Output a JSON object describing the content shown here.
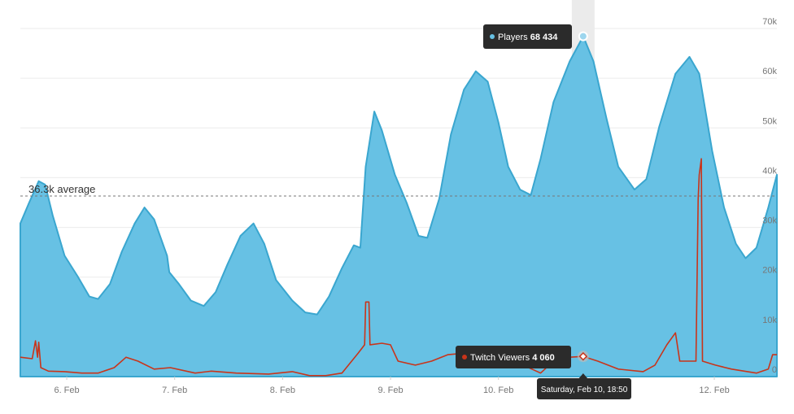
{
  "chart_data": {
    "type": "area",
    "xlim": [
      5.57,
      12.58
    ],
    "xticks": [
      {
        "value": 6,
        "label": "6. Feb"
      },
      {
        "value": 7,
        "label": "7. Feb"
      },
      {
        "value": 8,
        "label": "8. Feb"
      },
      {
        "value": 9,
        "label": "9. Feb"
      },
      {
        "value": 10,
        "label": "10. Feb"
      },
      {
        "value": 12,
        "label": "12. Feb"
      }
    ],
    "ylim": [
      0,
      70000
    ],
    "yticks": [
      0,
      {
        "value": 10000,
        "label": "10k"
      },
      {
        "value": 20000,
        "label": "20k"
      },
      {
        "value": 30000,
        "label": "30k"
      },
      {
        "value": 40000,
        "label": "40k"
      },
      {
        "value": 50000,
        "label": "50k"
      },
      {
        "value": 60000,
        "label": "60k"
      },
      {
        "value": 70000,
        "label": "70k"
      }
    ],
    "grid": true,
    "average": {
      "value": 36300,
      "label": "36.3k average"
    },
    "series": [
      {
        "name": "Players",
        "color": "#67c1e4",
        "line_color": "#3aa6cf",
        "kind": "area",
        "x": [
          5.57,
          5.65,
          5.74,
          5.8,
          5.87,
          5.98,
          6.1,
          6.21,
          6.29,
          6.4,
          6.51,
          6.63,
          6.72,
          6.81,
          6.93,
          6.95,
          7.04,
          7.15,
          7.27,
          7.38,
          7.49,
          7.61,
          7.73,
          7.83,
          7.94,
          8.09,
          8.21,
          8.32,
          8.43,
          8.55,
          8.66,
          8.72,
          8.77,
          8.85,
          8.92,
          9.04,
          9.15,
          9.26,
          9.34,
          9.45,
          9.56,
          9.68,
          9.79,
          9.9,
          10.0,
          10.09,
          10.2,
          10.3,
          10.39,
          10.51,
          10.66,
          10.785,
          10.88,
          11.0,
          11.11,
          11.26,
          11.37,
          11.49,
          11.64,
          11.77,
          11.86,
          11.98,
          12.09,
          12.2,
          12.29,
          12.39,
          12.5,
          12.58
        ],
        "values": [
          30800,
          34900,
          39300,
          38600,
          32400,
          24300,
          20200,
          16100,
          15600,
          18600,
          25100,
          30800,
          34000,
          31600,
          24300,
          21000,
          18600,
          15300,
          14200,
          17000,
          22600,
          28300,
          30800,
          26700,
          19400,
          15300,
          12900,
          12500,
          16100,
          21800,
          26400,
          25900,
          42200,
          53300,
          49500,
          40600,
          34900,
          28300,
          27900,
          35700,
          48700,
          57700,
          61400,
          59300,
          51100,
          42200,
          37600,
          36500,
          43800,
          55200,
          63400,
          68434,
          63400,
          52000,
          42200,
          37600,
          39700,
          50300,
          60900,
          64300,
          60900,
          45400,
          34000,
          26700,
          23800,
          25900,
          34000,
          40600
        ]
      },
      {
        "name": "Twitch Viewers",
        "color": "#c9341a",
        "kind": "line",
        "x": [
          5.57,
          5.68,
          5.71,
          5.73,
          5.74,
          5.76,
          5.83,
          5.98,
          6.14,
          6.29,
          6.44,
          6.55,
          6.66,
          6.81,
          6.96,
          7.19,
          7.34,
          7.57,
          7.87,
          8.09,
          8.25,
          8.4,
          8.55,
          8.7,
          8.76,
          8.77,
          8.8,
          8.81,
          8.92,
          9.0,
          9.07,
          9.23,
          9.38,
          9.53,
          9.68,
          9.83,
          9.98,
          10.13,
          10.28,
          10.39,
          10.51,
          10.66,
          10.785,
          10.92,
          11.11,
          11.34,
          11.45,
          11.56,
          11.64,
          11.68,
          11.83,
          11.85,
          11.86,
          11.88,
          11.89,
          12.01,
          12.16,
          12.39,
          12.5,
          12.54,
          12.58
        ],
        "values": [
          3900,
          3600,
          7200,
          3900,
          6900,
          1800,
          1100,
          1000,
          700,
          700,
          1800,
          3900,
          3100,
          1500,
          1800,
          700,
          1100,
          700,
          500,
          1000,
          200,
          200,
          700,
          4700,
          6400,
          15000,
          15000,
          6400,
          6700,
          6400,
          3100,
          2300,
          3100,
          4400,
          4700,
          3900,
          3100,
          3600,
          1800,
          700,
          3100,
          3900,
          4060,
          3100,
          1500,
          1000,
          2300,
          6400,
          8800,
          3100,
          3100,
          35700,
          40600,
          43800,
          3100,
          2300,
          1500,
          700,
          1500,
          4400,
          4400
        ]
      }
    ],
    "tooltip": {
      "x": 10.785,
      "x_label": "Saturday, Feb 10, 18:50",
      "entries": [
        {
          "value": 68434,
          "label": "68 434"
        },
        {
          "value": 4060,
          "label": "4 060"
        }
      ]
    }
  }
}
